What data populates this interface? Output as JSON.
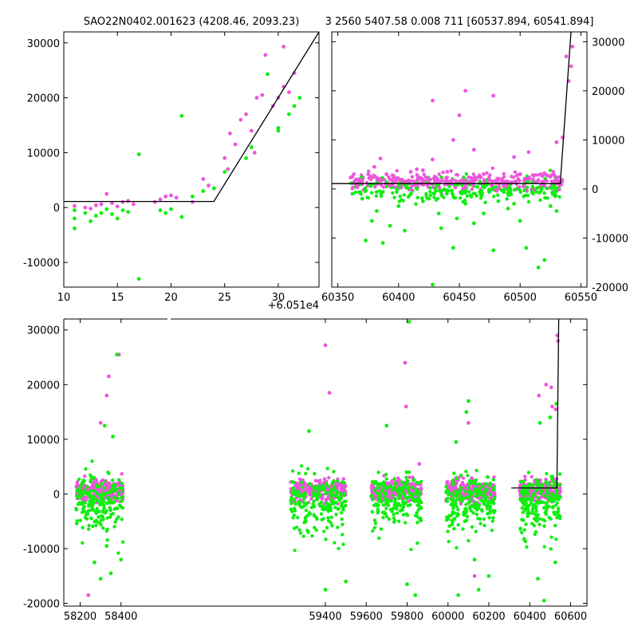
{
  "titles": {
    "left": "SAO22N0402.001623 (4208.46, 2093.23)",
    "right": "3 2560 5407.58 0.008 711 [60537.894, 60541.894]"
  },
  "colors": {
    "pink": "#ee55dd",
    "green": "#11ee11",
    "fit": "#000000"
  },
  "chart_data": [
    {
      "type": "scatter",
      "panel": "top-left zoom",
      "x_offset_label": "+6.051e4",
      "xlim": [
        10,
        33.8
      ],
      "ylim": [
        -14500,
        32000
      ],
      "x_ticks": [
        10,
        15,
        20,
        25,
        30
      ],
      "y_ticks": [
        -10000,
        0,
        10000,
        20000,
        30000
      ],
      "fit_line": [
        [
          10,
          1100
        ],
        [
          24,
          1100
        ],
        [
          33.8,
          32000
        ]
      ],
      "series": [
        {
          "color_key": "pink",
          "points": [
            [
              11,
              300
            ],
            [
              12,
              0
            ],
            [
              12.5,
              -200
            ],
            [
              13,
              400
            ],
            [
              13.5,
              600
            ],
            [
              14,
              2500
            ],
            [
              14.5,
              800
            ],
            [
              15,
              200
            ],
            [
              15.5,
              1000
            ],
            [
              16,
              1200
            ],
            [
              16.5,
              600
            ],
            [
              18.5,
              1000
            ],
            [
              19,
              1500
            ],
            [
              19.5,
              2000
            ],
            [
              20,
              2200
            ],
            [
              20.5,
              1800
            ],
            [
              22,
              1000
            ],
            [
              23,
              5200
            ],
            [
              23.5,
              4000
            ],
            [
              24,
              3500
            ],
            [
              25,
              9000
            ],
            [
              25.3,
              7000
            ],
            [
              25.5,
              13500
            ],
            [
              26,
              11500
            ],
            [
              26.5,
              16000
            ],
            [
              27,
              17000
            ],
            [
              27.5,
              14000
            ],
            [
              27.8,
              10000
            ],
            [
              28,
              20000
            ],
            [
              28.5,
              20500
            ],
            [
              29.5,
              18500
            ],
            [
              30,
              20000
            ],
            [
              30.5,
              22000
            ],
            [
              30.5,
              29300
            ],
            [
              31,
              21000
            ],
            [
              31.5,
              24500
            ],
            [
              28.8,
              27800
            ]
          ]
        },
        {
          "color_key": "green",
          "points": [
            [
              11,
              -500
            ],
            [
              11,
              -2000
            ],
            [
              11,
              -3800
            ],
            [
              12,
              -1000
            ],
            [
              12.5,
              -2500
            ],
            [
              13,
              -1500
            ],
            [
              13.5,
              -1000
            ],
            [
              14,
              -300
            ],
            [
              14.5,
              -1200
            ],
            [
              15,
              -2000
            ],
            [
              15.5,
              -500
            ],
            [
              16,
              -800
            ],
            [
              17,
              9700
            ],
            [
              17,
              -13000
            ],
            [
              19,
              -500
            ],
            [
              19.5,
              -1000
            ],
            [
              20,
              -300
            ],
            [
              21,
              16700
            ],
            [
              21,
              -1700
            ],
            [
              22,
              2000
            ],
            [
              23,
              3000
            ],
            [
              24,
              3500
            ],
            [
              25,
              6500
            ],
            [
              27,
              9000
            ],
            [
              27.5,
              11000
            ],
            [
              29,
              24300
            ],
            [
              30,
              14500
            ],
            [
              30,
              14000
            ],
            [
              31,
              17000
            ],
            [
              31.5,
              18500
            ],
            [
              32,
              20000
            ]
          ]
        }
      ]
    },
    {
      "type": "scatter",
      "panel": "top-right",
      "xlim": [
        60345,
        60555
      ],
      "ylim": [
        -20000,
        32000
      ],
      "x_ticks": [
        60350,
        60400,
        60450,
        60500,
        60550
      ],
      "y_ticks": [
        -20000,
        -10000,
        0,
        10000,
        20000,
        30000
      ],
      "fit_line": [
        [
          60345,
          1100
        ],
        [
          60533,
          1100
        ],
        [
          60541.9,
          32000
        ]
      ],
      "series": [
        {
          "color_key": "pink",
          "points": [
            [
              60362,
              2500
            ],
            [
              60370,
              1500
            ],
            [
              60375,
              3000
            ],
            [
              60380,
              4500
            ],
            [
              60385,
              6200
            ],
            [
              60390,
              3000
            ],
            [
              60395,
              2800
            ],
            [
              60400,
              2000
            ],
            [
              60405,
              1500
            ],
            [
              60410,
              3500
            ],
            [
              60415,
              4000
            ],
            [
              60420,
              3800
            ],
            [
              60428,
              6000
            ],
            [
              60428,
              18000
            ],
            [
              60432,
              2000
            ],
            [
              60440,
              3500
            ],
            [
              60445,
              10000
            ],
            [
              60450,
              15000
            ],
            [
              60455,
              20000
            ],
            [
              60462,
              8000
            ],
            [
              60470,
              3000
            ],
            [
              60478,
              19000
            ],
            [
              60485,
              2000
            ],
            [
              60490,
              1500
            ],
            [
              60495,
              6500
            ],
            [
              60500,
              3000
            ],
            [
              60507,
              7500
            ],
            [
              60515,
              1800
            ],
            [
              60520,
              3200
            ],
            [
              60525,
              2500
            ],
            [
              60530,
              9500
            ],
            [
              60535,
              10500
            ],
            [
              60540,
              22000
            ],
            [
              60542,
              25000
            ],
            [
              60543,
              29000
            ],
            [
              60538,
              27000
            ]
          ]
        },
        {
          "color_key": "green",
          "points": [
            [
              60362,
              -1000
            ],
            [
              60370,
              -2000
            ],
            [
              60373,
              -10500
            ],
            [
              60378,
              -6500
            ],
            [
              60382,
              -4500
            ],
            [
              60387,
              -11000
            ],
            [
              60393,
              -7500
            ],
            [
              60400,
              -3500
            ],
            [
              60405,
              -8500
            ],
            [
              60410,
              -1000
            ],
            [
              60420,
              -2500
            ],
            [
              60425,
              -2000
            ],
            [
              60428,
              -19500
            ],
            [
              60433,
              -5000
            ],
            [
              60435,
              -8000
            ],
            [
              60445,
              -12000
            ],
            [
              60448,
              -6000
            ],
            [
              60455,
              -3000
            ],
            [
              60462,
              -7000
            ],
            [
              60470,
              -5000
            ],
            [
              60478,
              -12500
            ],
            [
              60482,
              -2500
            ],
            [
              60490,
              -4000
            ],
            [
              60495,
              -3000
            ],
            [
              60500,
              -6500
            ],
            [
              60505,
              -12000
            ],
            [
              60515,
              -16000
            ],
            [
              60520,
              -14500
            ],
            [
              60525,
              -3500
            ],
            [
              60530,
              -4500
            ]
          ]
        }
      ]
    },
    {
      "type": "scatter",
      "panel": "bottom",
      "xlim": [
        58120,
        60680
      ],
      "ylim": [
        -20500,
        32000
      ],
      "x_ticks": [
        58200,
        58400,
        59400,
        59600,
        59800,
        60000,
        60200,
        60400,
        60600
      ],
      "y_ticks": [
        -20000,
        -10000,
        0,
        10000,
        20000,
        30000
      ],
      "fit_line": [
        [
          60310,
          1100
        ],
        [
          60533,
          1100
        ],
        [
          60541.9,
          32000
        ]
      ],
      "segments": [
        [
          58180,
          58410
        ],
        [
          59230,
          59500
        ],
        [
          59620,
          59870
        ],
        [
          59990,
          60230
        ],
        [
          60350,
          60550
        ]
      ],
      "outliers": {
        "pink": [
          [
            58240,
            -18500
          ],
          [
            58300,
            13000
          ],
          [
            58310,
            2500
          ],
          [
            58330,
            18000
          ],
          [
            58340,
            21500
          ],
          [
            58390,
            25500
          ],
          [
            59400,
            27200
          ],
          [
            59420,
            18500
          ],
          [
            59790,
            24000
          ],
          [
            59795,
            16000
          ],
          [
            59860,
            5500
          ],
          [
            60100,
            13000
          ],
          [
            60130,
            -15000
          ],
          [
            60445,
            18000
          ],
          [
            60480,
            20000
          ],
          [
            60505,
            19500
          ],
          [
            60510,
            16000
          ],
          [
            60527,
            15500
          ],
          [
            60535,
            29000
          ],
          [
            60538,
            28000
          ]
        ],
        "green": [
          [
            58270,
            -12500
          ],
          [
            58300,
            -15500
          ],
          [
            58320,
            12500
          ],
          [
            58330,
            -9500
          ],
          [
            58350,
            -14500
          ],
          [
            58360,
            10500
          ],
          [
            58380,
            25500
          ],
          [
            58400,
            -12000
          ],
          [
            59320,
            11500
          ],
          [
            59400,
            -17500
          ],
          [
            59500,
            -16000
          ],
          [
            59810,
            31500
          ],
          [
            59800,
            -16500
          ],
          [
            59840,
            -18500
          ],
          [
            59700,
            12500
          ],
          [
            60040,
            9500
          ],
          [
            60090,
            15000
          ],
          [
            60100,
            17000
          ],
          [
            60050,
            -18500
          ],
          [
            60130,
            -12000
          ],
          [
            60150,
            -17500
          ],
          [
            60200,
            -15000
          ],
          [
            60440,
            -15500
          ],
          [
            60450,
            13000
          ],
          [
            60470,
            -19500
          ],
          [
            60500,
            14000
          ],
          [
            60525,
            -12500
          ],
          [
            60530,
            16500
          ]
        ]
      }
    }
  ]
}
